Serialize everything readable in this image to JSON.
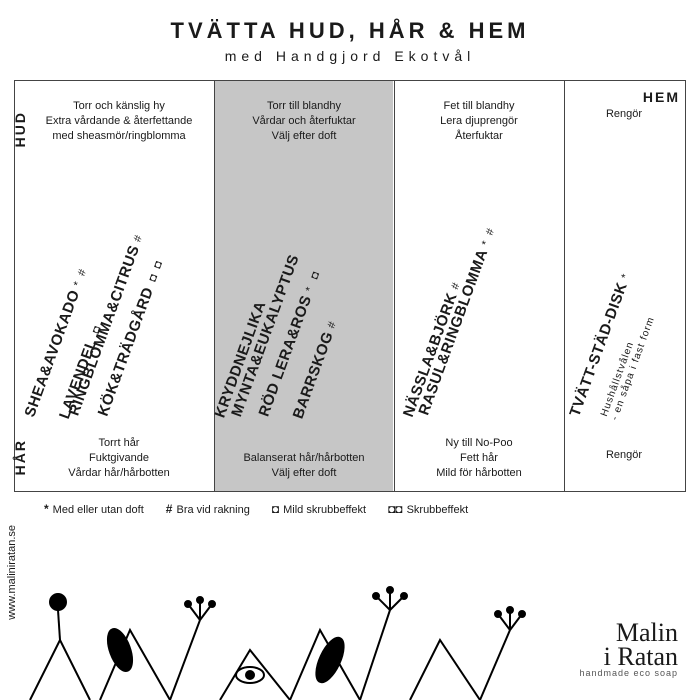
{
  "header": {
    "title": "TVÄTTA HUD, HÅR & HEM",
    "subtitle": "med Handgjord Ekotvål"
  },
  "side": {
    "hud": "HUD",
    "har": "HÅR"
  },
  "top": {
    "hem": "HEM"
  },
  "cols": {
    "c1": {
      "top": "Torr och känslig hy\nExtra vårdande & återfettande\nmed sheasmör/ringblomma",
      "bot": "Torrt hår\nFuktgivande\nVårdar hår/hårbotten",
      "products": [
        {
          "name": "SHEA&AVOKADO",
          "marks": "* #"
        },
        {
          "name": "LAVENDEL",
          "marks": "◘"
        },
        {
          "name": "RINGBLOMMA&CITRUS",
          "marks": "#"
        },
        {
          "name": "KÖK&TRÄDGÅRD",
          "marks": "◘◘"
        }
      ]
    },
    "c2": {
      "top": "Torr till blandhy\nVårdar och återfuktar\nVälj efter doft",
      "bot": "Balanserat hår/hårbotten\nVälj efter doft",
      "products": [
        {
          "name": "KRYDDNEJLIKA",
          "marks": ""
        },
        {
          "name": "MYNTA&EUKALYPTUS",
          "marks": ""
        },
        {
          "name": "RÖD LERA&ROS",
          "marks": "* ◘"
        },
        {
          "name": "BARRSKOG",
          "marks": "#"
        }
      ]
    },
    "c3": {
      "top": "Fet till blandhy\nLera djuprengör\nÅterfuktar",
      "bot": "Ny till No-Poo\nFett hår\nMild för hårbotten",
      "products": [
        {
          "name": "NÄSSLA&BJÖRK",
          "marks": "#"
        },
        {
          "name": "RASUL&RINGBLOMMA",
          "marks": "* #"
        }
      ]
    },
    "c4": {
      "top": "Rengör",
      "bot": "Rengör",
      "products": [
        {
          "name": "TVÄTT-STÄD-DISK",
          "marks": "*"
        }
      ],
      "sub": "Hushållstvålen\n- en såpa i fast form"
    }
  },
  "legend": {
    "l1": {
      "mark": "*",
      "text": "Med eller utan doft"
    },
    "l2": {
      "mark": "#",
      "text": "Bra vid rakning"
    },
    "l3": {
      "mark": "◘",
      "text": "Mild skrubbeffekt"
    },
    "l4": {
      "mark": "◘◘",
      "text": "Skrubbeffekt"
    }
  },
  "url": "www.maliniratan.se",
  "brand": {
    "name": "Malin\ni Ratan",
    "tag": "handmade eco soap"
  },
  "colors": {
    "bg": "#ffffff",
    "shade": "#c6c6c6",
    "line": "#444",
    "text": "#1a1a1a"
  }
}
